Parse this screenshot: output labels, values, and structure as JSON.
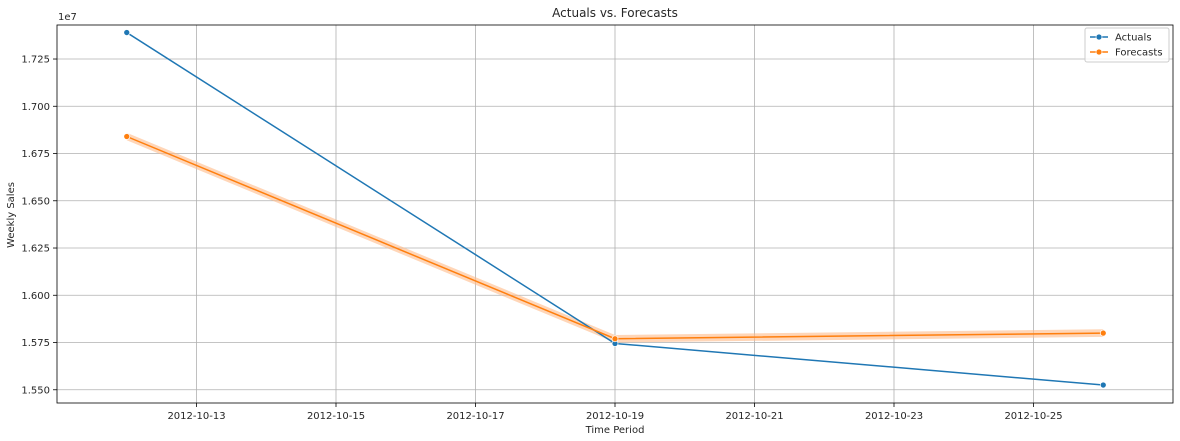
{
  "chart_data": {
    "type": "line",
    "title": "Actuals vs. Forecasts",
    "xlabel": "Time Period",
    "ylabel": "Weekly Sales",
    "y_offset_label": "1e7",
    "y_multiplier": 10000000,
    "x_ticks": [
      "2012-10-13",
      "2012-10-15",
      "2012-10-17",
      "2012-10-19",
      "2012-10-21",
      "2012-10-23",
      "2012-10-25"
    ],
    "y_ticks": [
      1.55,
      1.575,
      1.6,
      1.625,
      1.65,
      1.675,
      1.7,
      1.725
    ],
    "y_tick_labels": [
      "1.550",
      "1.575",
      "1.600",
      "1.625",
      "1.650",
      "1.675",
      "1.700",
      "1.725"
    ],
    "xlim": [
      "2012-10-11",
      "2012-10-27"
    ],
    "ylim": [
      15430000,
      17430000
    ],
    "grid": true,
    "legend_position": "top-right",
    "series": [
      {
        "name": "Actuals",
        "color": "#1f77b4",
        "x": [
          "2012-10-12",
          "2012-10-19",
          "2012-10-26"
        ],
        "y": [
          17390000,
          15745000,
          15525000
        ]
      },
      {
        "name": "Forecasts",
        "color": "#ff7f0e",
        "x": [
          "2012-10-12",
          "2012-10-19",
          "2012-10-26"
        ],
        "y": [
          16840000,
          15770000,
          15800000
        ],
        "band_lower": [
          16820000,
          15750000,
          15780000
        ],
        "band_upper": [
          16860000,
          15790000,
          15820000
        ],
        "band_color": "#ffbb88"
      }
    ]
  }
}
